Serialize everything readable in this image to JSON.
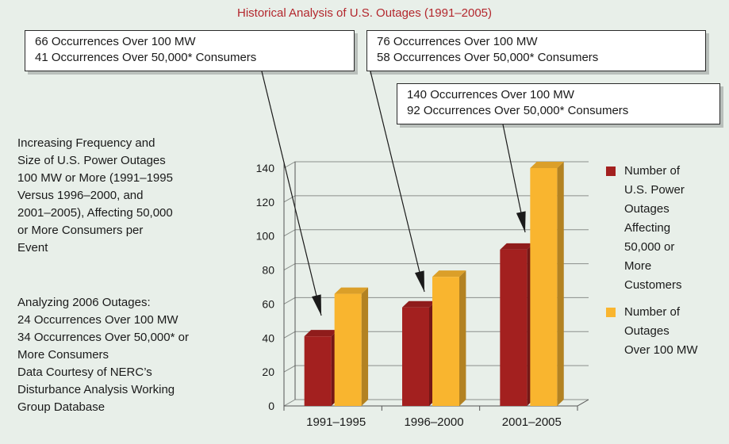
{
  "title": "Historical Analysis of U.S. Outages (1991–2005)",
  "callouts": [
    {
      "lines": [
        "66 Occurrences Over 100 MW",
        "41 Occurrences Over 50,000* Consumers"
      ]
    },
    {
      "lines": [
        "76 Occurrences Over 100 MW",
        "58 Occurrences Over 50,000* Consumers"
      ]
    },
    {
      "lines": [
        "140 Occurrences Over 100 MW",
        "92 Occurrences Over 50,000* Consumers"
      ]
    }
  ],
  "description": {
    "lines": [
      "Increasing Frequency and",
      "Size of U.S. Power Outages",
      "100 MW or More (1991–1995",
      "Versus 1996–2000, and",
      "2001–2005), Affecting 50,000",
      "or More Consumers per",
      "Event"
    ]
  },
  "notes": {
    "lines": [
      "Analyzing 2006 Outages:",
      "24 Occurrences Over 100 MW",
      "34 Occurrences  Over 50,000* or",
      "More Consumers",
      "Data Courtesy of NERC’s",
      "Disturbance Analysis Working",
      "Group Database"
    ]
  },
  "legend": [
    {
      "color": "#a3201f",
      "lines": [
        "Number of",
        "U.S. Power",
        "Outages",
        "Affecting",
        "50,000 or",
        "More",
        "Customers"
      ]
    },
    {
      "color": "#f9b52f",
      "lines": [
        "Number of",
        "Outages",
        "Over 100 MW"
      ]
    }
  ],
  "chart_data": {
    "type": "bar",
    "categories": [
      "1991–1995",
      "1996–2000",
      "2001–2005"
    ],
    "series": [
      {
        "name": "Number of U.S. Power Outages Affecting 50,000 or More Customers",
        "values": [
          41,
          58,
          92
        ],
        "color": "#a3201f"
      },
      {
        "name": "Number of Outages Over 100 MW",
        "values": [
          66,
          76,
          140
        ],
        "color": "#f9b52f"
      }
    ],
    "ylim": [
      0,
      140
    ],
    "yticks": [
      0,
      20,
      40,
      60,
      80,
      100,
      120,
      140
    ],
    "ytick_labels": [
      "0",
      "20",
      "40",
      "60",
      "80",
      "100",
      "120",
      "140"
    ],
    "grid": true,
    "style": "3d"
  }
}
